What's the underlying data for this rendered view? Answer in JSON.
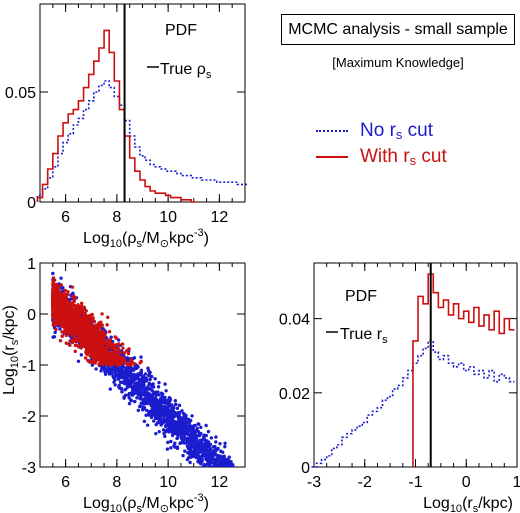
{
  "header": {
    "title": "MCMC analysis - small sample",
    "subtitle": "[Maximum Knowledge]"
  },
  "legend": {
    "no_cut_label": "No r",
    "no_cut_sub": "s",
    "no_cut_suffix": " cut",
    "with_cut_label": "With r",
    "with_cut_sub": "s",
    "with_cut_suffix": " cut",
    "no_cut_color": "#1c1ccf",
    "with_cut_color": "#cc1010"
  },
  "chart_data": [
    {
      "type": "line",
      "panel": "top-left",
      "annotation": "PDF",
      "true_label": "True ρ",
      "true_label_sub": "s",
      "true_value": 8.3,
      "xlim": [
        5,
        13
      ],
      "ylim": [
        0,
        0.09
      ],
      "xticks": [
        6,
        8,
        10,
        12
      ],
      "yticks": [
        0,
        0.05
      ],
      "xlabel": "Log10(ρs/M⊙kpc-3)",
      "series": [
        {
          "name": "No rs cut",
          "style": "dotted",
          "color": "#1c1ccf",
          "x": [
            5.0,
            5.2,
            5.4,
            5.6,
            5.8,
            6.0,
            6.2,
            6.4,
            6.6,
            6.8,
            7.0,
            7.2,
            7.4,
            7.6,
            7.8,
            8.0,
            8.2,
            8.4,
            8.6,
            8.8,
            9.0,
            9.2,
            9.4,
            9.6,
            9.8,
            10.0,
            10.2,
            10.4,
            10.6,
            10.8,
            11.0,
            11.2,
            11.4,
            11.6,
            11.8,
            12.0,
            12.2,
            12.4,
            12.6,
            12.8,
            13.0
          ],
          "values": [
            0.003,
            0.006,
            0.011,
            0.016,
            0.022,
            0.027,
            0.031,
            0.035,
            0.038,
            0.042,
            0.046,
            0.05,
            0.053,
            0.055,
            0.052,
            0.048,
            0.044,
            0.037,
            0.03,
            0.025,
            0.021,
            0.019,
            0.017,
            0.016,
            0.015,
            0.014,
            0.014,
            0.013,
            0.012,
            0.012,
            0.011,
            0.011,
            0.01,
            0.01,
            0.01,
            0.009,
            0.009,
            0.009,
            0.009,
            0.008,
            0.008
          ]
        },
        {
          "name": "With rs cut",
          "style": "solid",
          "color": "#cc1010",
          "x": [
            5.0,
            5.2,
            5.4,
            5.6,
            5.8,
            6.0,
            6.2,
            6.4,
            6.6,
            6.8,
            7.0,
            7.2,
            7.4,
            7.6,
            7.8,
            8.0,
            8.2,
            8.4,
            8.6,
            8.8,
            9.0,
            9.2,
            9.4,
            9.6,
            9.8,
            10.0,
            10.2,
            10.4,
            10.6,
            10.8,
            11.0
          ],
          "values": [
            0.002,
            0.008,
            0.015,
            0.022,
            0.03,
            0.036,
            0.04,
            0.042,
            0.046,
            0.052,
            0.058,
            0.064,
            0.07,
            0.078,
            0.068,
            0.055,
            0.042,
            0.03,
            0.02,
            0.014,
            0.01,
            0.007,
            0.005,
            0.004,
            0.004,
            0.003,
            0.002,
            0.002,
            0.001,
            0.001,
            0.0
          ]
        }
      ]
    },
    {
      "type": "scatter",
      "panel": "bottom-left",
      "xlim": [
        5,
        13
      ],
      "ylim": [
        -3,
        1
      ],
      "xticks": [
        6,
        8,
        10,
        12
      ],
      "yticks": [
        -3,
        -2,
        -1,
        0,
        1
      ],
      "xlabel": "Log10(ρs/M⊙kpc-3)",
      "ylabel": "Log10(rs/kpc)",
      "relation": "log10_rs ≈ 3.0 - 0.5 * log10_rhos",
      "series": [
        {
          "name": "No rs cut",
          "color": "#1c1ccf",
          "x_range": [
            5.5,
            13.0
          ],
          "scatter": 0.25,
          "count": 2600
        },
        {
          "name": "With rs cut",
          "color": "#cc1010",
          "x_range": [
            5.5,
            9.5
          ],
          "rs_min": -1.0,
          "scatter": 0.25,
          "count": 1500
        }
      ]
    },
    {
      "type": "line",
      "panel": "bottom-right",
      "annotation": "PDF",
      "true_label": "True r",
      "true_label_sub": "s",
      "true_value": -0.7,
      "xlim": [
        -3,
        1
      ],
      "ylim": [
        0,
        0.055
      ],
      "xticks": [
        -3,
        -2,
        -1,
        0,
        1
      ],
      "yticks": [
        0,
        0.02,
        0.04
      ],
      "xlabel": "Log10(rs/kpc)",
      "series": [
        {
          "name": "No rs cut",
          "style": "dotted",
          "color": "#1c1ccf",
          "x": [
            -3.0,
            -2.9,
            -2.8,
            -2.7,
            -2.6,
            -2.5,
            -2.4,
            -2.3,
            -2.2,
            -2.1,
            -2.0,
            -1.9,
            -1.8,
            -1.7,
            -1.6,
            -1.5,
            -1.4,
            -1.3,
            -1.2,
            -1.1,
            -1.0,
            -0.9,
            -0.8,
            -0.7,
            -0.6,
            -0.5,
            -0.4,
            -0.3,
            -0.2,
            -0.1,
            0.0,
            0.1,
            0.2,
            0.3,
            0.4,
            0.5,
            0.6,
            0.7,
            0.8,
            0.9
          ],
          "values": [
            0.0,
            0.001,
            0.002,
            0.003,
            0.005,
            0.006,
            0.008,
            0.009,
            0.01,
            0.011,
            0.012,
            0.014,
            0.015,
            0.016,
            0.018,
            0.019,
            0.021,
            0.022,
            0.024,
            0.026,
            0.028,
            0.03,
            0.032,
            0.034,
            0.031,
            0.029,
            0.03,
            0.028,
            0.027,
            0.028,
            0.026,
            0.027,
            0.025,
            0.026,
            0.024,
            0.026,
            0.023,
            0.025,
            0.024,
            0.023
          ]
        },
        {
          "name": "With rs cut",
          "style": "solid",
          "color": "#cc1010",
          "x": [
            -1.0,
            -0.9,
            -0.8,
            -0.7,
            -0.6,
            -0.5,
            -0.4,
            -0.3,
            -0.2,
            -0.1,
            0.0,
            0.1,
            0.2,
            0.3,
            0.4,
            0.5,
            0.6,
            0.7,
            0.8,
            0.9
          ],
          "values": [
            0.034,
            0.046,
            0.044,
            0.052,
            0.047,
            0.043,
            0.045,
            0.041,
            0.044,
            0.04,
            0.042,
            0.039,
            0.043,
            0.038,
            0.041,
            0.037,
            0.042,
            0.036,
            0.04,
            0.037
          ]
        }
      ]
    }
  ]
}
